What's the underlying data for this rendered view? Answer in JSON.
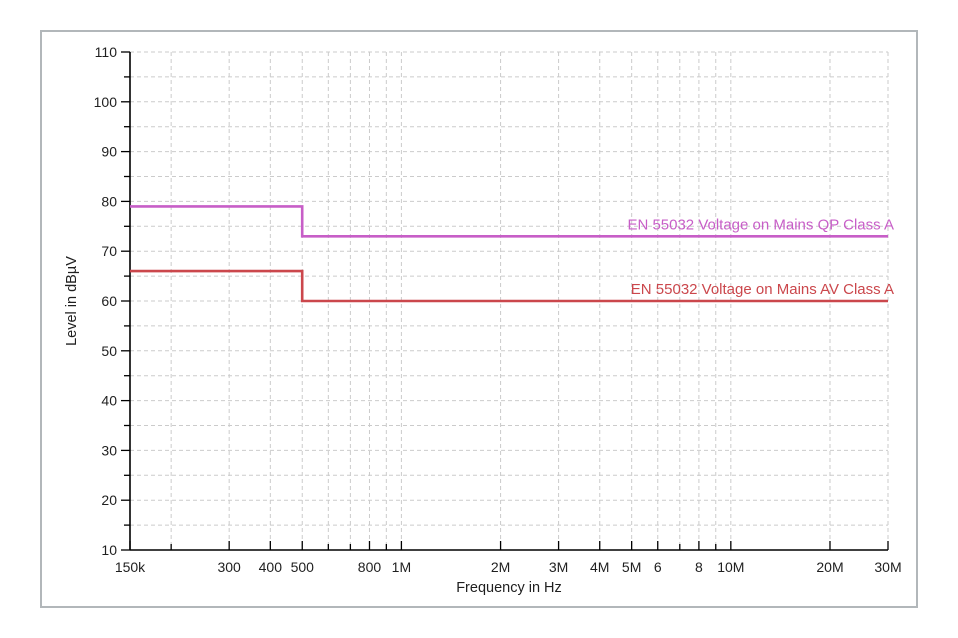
{
  "window": {
    "background_color": "#ffffff",
    "panel_border_color": "#b2b7ba"
  },
  "chart_data": {
    "type": "line",
    "subtype": "step-limit-lines",
    "title": "",
    "xlabel": "Frequency in Hz",
    "ylabel": "Level in dBµV",
    "x_scale": "log",
    "x_range_hz": [
      150000,
      30000000
    ],
    "y_range": [
      10,
      110
    ],
    "y_major_step": 10,
    "y_minor_step": 5,
    "y_ticks_labeled": [
      10,
      20,
      30,
      40,
      50,
      60,
      70,
      80,
      90,
      100,
      110
    ],
    "grid": "dashed",
    "grid_color": "#cbcbcb",
    "axis_color": "#000000",
    "text_color": "#1f1f1f",
    "legend_position": "inline-right",
    "x_ticks": [
      {
        "hz": 150000,
        "label": "150k"
      },
      {
        "hz": 200000,
        "label": ""
      },
      {
        "hz": 300000,
        "label": "300"
      },
      {
        "hz": 400000,
        "label": "400"
      },
      {
        "hz": 500000,
        "label": "500"
      },
      {
        "hz": 600000,
        "label": ""
      },
      {
        "hz": 700000,
        "label": ""
      },
      {
        "hz": 800000,
        "label": "800"
      },
      {
        "hz": 900000,
        "label": ""
      },
      {
        "hz": 1000000,
        "label": "1M"
      },
      {
        "hz": 2000000,
        "label": "2M"
      },
      {
        "hz": 3000000,
        "label": "3M"
      },
      {
        "hz": 4000000,
        "label": "4M"
      },
      {
        "hz": 5000000,
        "label": "5M"
      },
      {
        "hz": 6000000,
        "label": "6"
      },
      {
        "hz": 7000000,
        "label": ""
      },
      {
        "hz": 8000000,
        "label": "8"
      },
      {
        "hz": 9000000,
        "label": ""
      },
      {
        "hz": 10000000,
        "label": "10M"
      },
      {
        "hz": 20000000,
        "label": "20M"
      },
      {
        "hz": 30000000,
        "label": "30M"
      }
    ],
    "series": [
      {
        "name": "EN 55032 Voltage on Mains QP Class A",
        "color": "#c75ec7",
        "points_hz_dbuv": [
          [
            150000,
            79
          ],
          [
            500000,
            79
          ],
          [
            500000,
            73
          ],
          [
            30000000,
            73
          ]
        ]
      },
      {
        "name": "EN 55032 Voltage on Mains AV Class A",
        "color": "#cb474c",
        "points_hz_dbuv": [
          [
            150000,
            66
          ],
          [
            500000,
            66
          ],
          [
            500000,
            60
          ],
          [
            30000000,
            60
          ]
        ]
      }
    ]
  }
}
